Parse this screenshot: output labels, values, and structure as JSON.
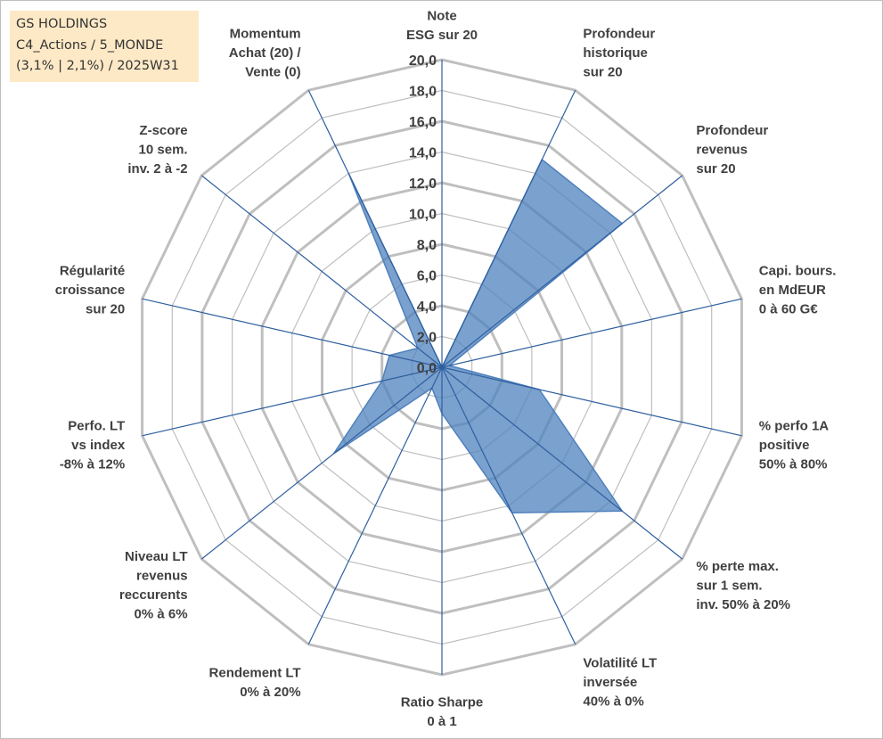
{
  "info_box": {
    "line1": "GS HOLDINGS",
    "line2": "C4_Actions / 5_MONDE",
    "line3": "(3,1% | 2,1%) / 2025W31"
  },
  "chart_data": {
    "type": "radar",
    "rmin": 0,
    "rmax": 20,
    "tick_step": 2,
    "tick_labels": [
      "0,0",
      "2,0",
      "4,0",
      "6,0",
      "8,0",
      "10,0",
      "12,0",
      "14,0",
      "16,0",
      "18,0",
      "20,0"
    ],
    "axes": [
      "Note\nESG sur 20",
      "Profondeur\nhistorique\nsur 20",
      "Profondeur\nrevenus\nsur 20",
      "Capi. bours.\nen MdEUR\n0 à 60 G€",
      "% perfo 1A\npositive\n50% à 80%",
      "% perte max.\nsur 1 sem.\ninv. 50% à 20%",
      "Volatilité LT\ninversée\n40% à 0%",
      "Ratio Sharpe\n0 à 1",
      "Rendement LT\n0% à 20%",
      "Niveau LT\nrevenus\nreccurents\n0% à 6%",
      "Perfo. LT\nvs index\n-8% à 12%",
      "Régularité\ncroissance\nsur 20",
      "Z-score\n10 sem.\ninv. 2 à -2",
      "Momentum\nAchat (20) /\nVente (0)"
    ],
    "values": [
      0.0,
      15.0,
      15.0,
      0.5,
      6.5,
      15.0,
      10.5,
      3.0,
      1.5,
      9.0,
      4.0,
      3.5,
      2.0,
      14.0
    ],
    "grid": true,
    "legend": "none",
    "colors": {
      "fill": "#4f81bd",
      "grid": "#bfbfbf",
      "spoke": "#2e5f9e",
      "info_bg": "#fde9c6"
    }
  }
}
